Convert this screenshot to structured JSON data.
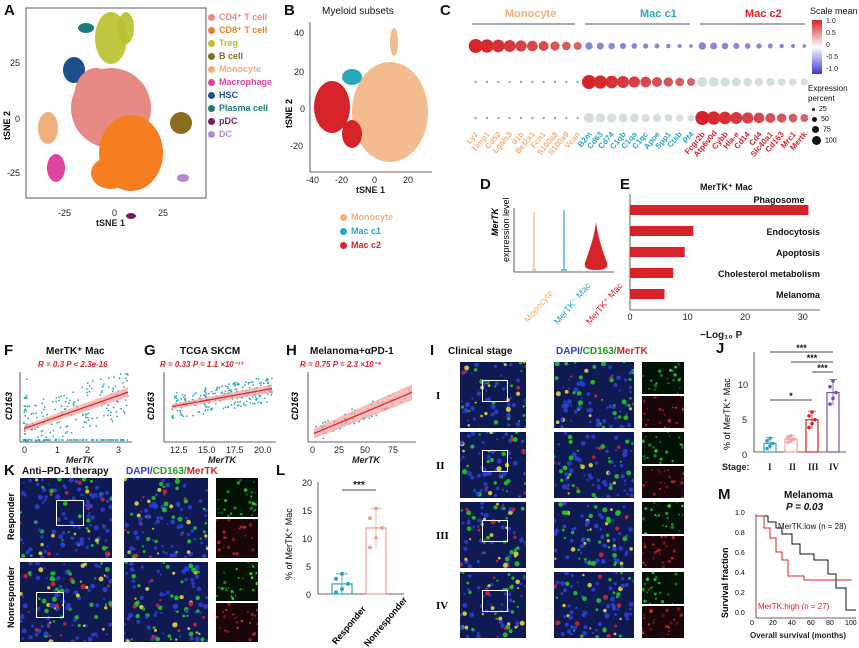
{
  "panels": {
    "A": {
      "label": "A",
      "xlabel": "tSNE 1",
      "ylabel": "tSNE 2",
      "xticks": [
        "-25",
        "0",
        "25"
      ],
      "yticks": [
        "25",
        "0",
        "-25"
      ],
      "legend": [
        {
          "name": "CD4⁺ T cell",
          "color": "#e88a84"
        },
        {
          "name": "CD8⁺ T cell",
          "color": "#f57e20"
        },
        {
          "name": "Treg",
          "color": "#b8c02a"
        },
        {
          "name": "B cell",
          "color": "#8a6d1e"
        },
        {
          "name": "Monocyte",
          "color": "#f1b07a"
        },
        {
          "name": "Macrophage",
          "color": "#e0449a"
        },
        {
          "name": "HSC",
          "color": "#1c4f8c"
        },
        {
          "name": "Plasma cell",
          "color": "#1b7b7a"
        },
        {
          "name": "pDC",
          "color": "#7a1d5a"
        },
        {
          "name": "DC",
          "color": "#b68bd6"
        }
      ]
    },
    "B": {
      "label": "B",
      "title": "Myeloid subsets",
      "xlabel": "tSNE 1",
      "ylabel": "tSNE 2",
      "xticks": [
        "-40",
        "-20",
        "0",
        "20"
      ],
      "yticks": [
        "40",
        "20",
        "0",
        "-20"
      ],
      "legend": [
        {
          "name": "Monocyte",
          "color": "#f1b07a"
        },
        {
          "name": "Mac c1",
          "color": "#2aa7b8"
        },
        {
          "name": "Mac c2",
          "color": "#d6232a"
        }
      ]
    },
    "C": {
      "label": "C",
      "groups": [
        {
          "name": "Monocyte",
          "color": "#f1b07a"
        },
        {
          "name": "Mac c1",
          "color": "#2aa7b8"
        },
        {
          "name": "Mac c2",
          "color": "#d6232a"
        }
      ],
      "genes_mono": [
        "Lyz",
        "Timp1",
        "Cd52",
        "Lgals3",
        "Il1b",
        "Bcl2a1",
        "Fcn1",
        "S100a8",
        "S100a9",
        "Vcan"
      ],
      "genes_mac1": [
        "B2m",
        "Cd63",
        "Cd74",
        "C1qb",
        "C1qa",
        "C1qc",
        "Apoe",
        "Spp1",
        "Ctsb",
        "Pf4"
      ],
      "genes_mac2": [
        "Fcgr2b",
        "Atp6v0d",
        "Cybb",
        "Hla-e",
        "Cd14",
        "Cd4",
        "Slc40a1",
        "Cd163",
        "Mrc1",
        "Mertk"
      ],
      "scale_title": "Scale mean",
      "scale_ticks": [
        "1.0",
        "0.5",
        "0",
        "-0.5",
        "-1.0"
      ],
      "size_title": "Expression percent",
      "size_ticks": [
        "25",
        "50",
        "75",
        "100"
      ]
    },
    "D": {
      "label": "D",
      "ylabel_gene": "MerTK",
      "ylabel_rest": "expression level",
      "groups": [
        {
          "name": "Monocyte",
          "color": "#f1b07a"
        },
        {
          "name": "MerTK⁻ Mac",
          "color": "#2aa7b8"
        },
        {
          "name": "MerTK⁺ Mac",
          "color": "#d6232a"
        }
      ]
    },
    "E": {
      "label": "E",
      "title": "MerTK⁺ Mac",
      "xlabel": "−Log₁₀ P",
      "xticks": [
        "0",
        "10",
        "20",
        "30"
      ]
    },
    "F": {
      "label": "F",
      "title": "MerTK⁺ Mac",
      "stat": "R = 0.3   P < 2.3e-16",
      "xlabel": "MerTK",
      "ylabel": "CD163",
      "xticks": [
        "0",
        "1",
        "2",
        "3"
      ]
    },
    "G": {
      "label": "G",
      "title": "TCGA SKCM",
      "stat": "R = 0.33   P = 1.1 ×10⁻¹³",
      "xlabel": "MerTK",
      "ylabel": "CD163",
      "xticks": [
        "12.5",
        "15.0",
        "17.5",
        "20.0"
      ]
    },
    "H": {
      "label": "H",
      "title": "Melanoma+αPD-1",
      "stat": "R = 0.75   P = 2.3 ×10⁻⁸",
      "xlabel": "MerTK",
      "ylabel": "CD163",
      "xticks": [
        "0",
        "25",
        "50",
        "75"
      ]
    },
    "I": {
      "label": "I",
      "title": "Clinical stage",
      "stain_dapi": "DAPI/",
      "stain_cd163": "CD163/",
      "stain_mertk": "MerTK",
      "stages": [
        "I",
        "II",
        "III",
        "IV"
      ]
    },
    "J": {
      "label": "J",
      "ylabel": "% of MerTK⁺ Mac",
      "xlabel": "Stage:",
      "yticks": [
        "0",
        "5",
        "10"
      ],
      "stages": [
        "I",
        "II",
        "III",
        "IV"
      ],
      "sig": [
        "***",
        "***",
        "***",
        "*"
      ]
    },
    "K": {
      "label": "K",
      "title": "Anti–PD-1 therapy",
      "stain_dapi": "DAPI/",
      "stain_cd163": "CD163/",
      "stain_mertk": "MerTK",
      "rows": [
        "Responder",
        "Nonresponder"
      ]
    },
    "L": {
      "label": "L",
      "ylabel": "% of MerTK⁺ Mac",
      "yticks": [
        "0",
        "5",
        "10",
        "15",
        "20"
      ],
      "groups": [
        "Responder",
        "Nonresponder"
      ],
      "sig": "***"
    },
    "M": {
      "label": "M",
      "title": "Melanoma",
      "pval": "P = 0.03",
      "low": "MerTK:low (n = 28)",
      "high": "MerTK:high (n = 27)",
      "ylabel": "Survival fraction",
      "xlabel": "Overall survival (months)",
      "xticks": [
        "0",
        "20",
        "40",
        "60",
        "80",
        "100"
      ],
      "yticks": [
        "0.0",
        "0.2",
        "0.4",
        "0.6",
        "0.8",
        "1.0"
      ]
    }
  },
  "chart_data": [
    {
      "type": "bar",
      "id": "E",
      "title": "MerTK⁺ Mac",
      "categories": [
        "Phagosome",
        "Endocytosis",
        "Apoptosis",
        "Cholesterol metabolism",
        "Melanoma"
      ],
      "values": [
        31,
        11,
        9.5,
        7.5,
        6
      ],
      "xlabel": "−Log₁₀ P",
      "xlim": [
        0,
        33
      ]
    },
    {
      "type": "bar",
      "id": "J",
      "categories": [
        "I",
        "II",
        "III",
        "IV"
      ],
      "values": [
        1.2,
        1.8,
        4.5,
        8.3
      ],
      "errors": [
        0.8,
        0.5,
        1.2,
        1.8
      ],
      "ylabel": "% of MerTK⁺ Mac",
      "ylim": [
        0,
        12
      ],
      "colors": [
        "#2aa7b8",
        "#f3a19c",
        "#d6232a",
        "#7b4fa8"
      ]
    },
    {
      "type": "bar",
      "id": "L",
      "categories": [
        "Responder",
        "Nonresponder"
      ],
      "values": [
        1.8,
        11.8
      ],
      "errors": [
        1.8,
        3.5
      ],
      "ylabel": "% of MerTK⁺ Mac",
      "ylim": [
        0,
        20
      ],
      "colors": [
        "#2aa7b8",
        "#f3a19c"
      ]
    }
  ]
}
